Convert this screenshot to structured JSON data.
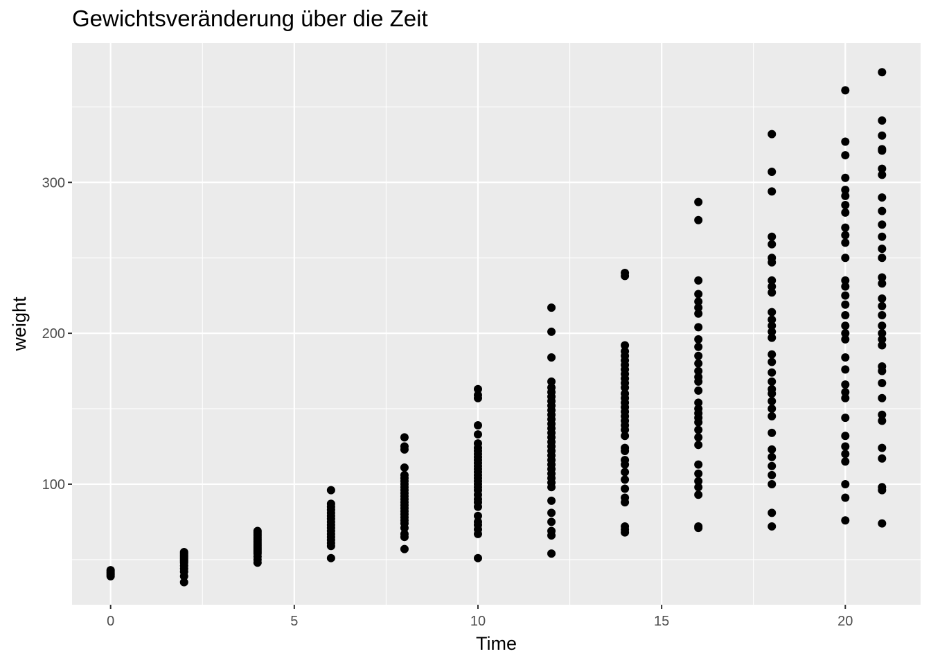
{
  "chart_data": {
    "type": "scatter",
    "title": "Gewichtsveränderung über die Zeit",
    "xlabel": "Time",
    "ylabel": "weight",
    "xlim": [
      -1.05,
      22.05
    ],
    "ylim": [
      20.1,
      392.4
    ],
    "x_ticks": [
      0,
      5,
      10,
      15,
      20
    ],
    "y_ticks": [
      100,
      200,
      300
    ],
    "grid": true,
    "panel_color": "#ebebeb",
    "grid_color": "#ffffff",
    "point_color": "#000000",
    "legend": "none",
    "series": [
      {
        "points": [
          [
            0,
            39
          ],
          [
            0,
            40
          ],
          [
            0,
            41
          ],
          [
            0,
            42
          ],
          [
            0,
            43
          ],
          [
            2,
            35
          ],
          [
            2,
            39
          ],
          [
            2,
            42
          ],
          [
            2,
            44
          ],
          [
            2,
            46
          ],
          [
            2,
            48
          ],
          [
            2,
            49
          ],
          [
            2,
            50
          ],
          [
            2,
            51
          ],
          [
            2,
            52
          ],
          [
            2,
            53
          ],
          [
            2,
            54
          ],
          [
            2,
            55
          ],
          [
            4,
            48
          ],
          [
            4,
            50
          ],
          [
            4,
            52
          ],
          [
            4,
            54
          ],
          [
            4,
            55
          ],
          [
            4,
            56
          ],
          [
            4,
            57
          ],
          [
            4,
            58
          ],
          [
            4,
            59
          ],
          [
            4,
            60
          ],
          [
            4,
            61
          ],
          [
            4,
            62
          ],
          [
            4,
            63
          ],
          [
            4,
            64
          ],
          [
            4,
            65
          ],
          [
            4,
            66
          ],
          [
            4,
            67
          ],
          [
            4,
            68
          ],
          [
            4,
            69
          ],
          [
            6,
            51
          ],
          [
            6,
            59
          ],
          [
            6,
            61
          ],
          [
            6,
            63
          ],
          [
            6,
            65
          ],
          [
            6,
            67
          ],
          [
            6,
            69
          ],
          [
            6,
            71
          ],
          [
            6,
            73
          ],
          [
            6,
            75
          ],
          [
            6,
            77
          ],
          [
            6,
            79
          ],
          [
            6,
            81
          ],
          [
            6,
            83
          ],
          [
            6,
            85
          ],
          [
            6,
            87
          ],
          [
            6,
            96
          ],
          [
            8,
            57
          ],
          [
            8,
            65
          ],
          [
            8,
            67
          ],
          [
            8,
            71
          ],
          [
            8,
            74
          ],
          [
            8,
            76
          ],
          [
            8,
            78
          ],
          [
            8,
            80
          ],
          [
            8,
            82
          ],
          [
            8,
            84
          ],
          [
            8,
            86
          ],
          [
            8,
            88
          ],
          [
            8,
            90
          ],
          [
            8,
            92
          ],
          [
            8,
            94
          ],
          [
            8,
            96
          ],
          [
            8,
            98
          ],
          [
            8,
            100
          ],
          [
            8,
            102
          ],
          [
            8,
            104
          ],
          [
            8,
            106
          ],
          [
            8,
            111
          ],
          [
            8,
            123
          ],
          [
            8,
            125
          ],
          [
            8,
            131
          ],
          [
            10,
            51
          ],
          [
            10,
            67
          ],
          [
            10,
            70
          ],
          [
            10,
            73
          ],
          [
            10,
            75
          ],
          [
            10,
            79
          ],
          [
            10,
            85
          ],
          [
            10,
            88
          ],
          [
            10,
            90
          ],
          [
            10,
            93
          ],
          [
            10,
            96
          ],
          [
            10,
            98
          ],
          [
            10,
            100
          ],
          [
            10,
            102
          ],
          [
            10,
            104
          ],
          [
            10,
            106
          ],
          [
            10,
            108
          ],
          [
            10,
            110
          ],
          [
            10,
            112
          ],
          [
            10,
            114
          ],
          [
            10,
            116
          ],
          [
            10,
            118
          ],
          [
            10,
            120
          ],
          [
            10,
            122
          ],
          [
            10,
            124
          ],
          [
            10,
            127
          ],
          [
            10,
            133
          ],
          [
            10,
            139
          ],
          [
            10,
            157
          ],
          [
            10,
            159
          ],
          [
            10,
            163
          ],
          [
            12,
            54
          ],
          [
            12,
            66
          ],
          [
            12,
            69
          ],
          [
            12,
            75
          ],
          [
            12,
            81
          ],
          [
            12,
            89
          ],
          [
            12,
            98
          ],
          [
            12,
            101
          ],
          [
            12,
            104
          ],
          [
            12,
            107
          ],
          [
            12,
            110
          ],
          [
            12,
            113
          ],
          [
            12,
            116
          ],
          [
            12,
            119
          ],
          [
            12,
            122
          ],
          [
            12,
            125
          ],
          [
            12,
            128
          ],
          [
            12,
            131
          ],
          [
            12,
            134
          ],
          [
            12,
            137
          ],
          [
            12,
            140
          ],
          [
            12,
            143
          ],
          [
            12,
            146
          ],
          [
            12,
            149
          ],
          [
            12,
            152
          ],
          [
            12,
            155
          ],
          [
            12,
            158
          ],
          [
            12,
            161
          ],
          [
            12,
            164
          ],
          [
            12,
            168
          ],
          [
            12,
            184
          ],
          [
            12,
            201
          ],
          [
            12,
            217
          ],
          [
            14,
            68
          ],
          [
            14,
            70
          ],
          [
            14,
            72
          ],
          [
            14,
            88
          ],
          [
            14,
            91
          ],
          [
            14,
            97
          ],
          [
            14,
            103
          ],
          [
            14,
            108
          ],
          [
            14,
            113
          ],
          [
            14,
            116
          ],
          [
            14,
            122
          ],
          [
            14,
            124
          ],
          [
            14,
            132
          ],
          [
            14,
            136
          ],
          [
            14,
            139
          ],
          [
            14,
            142
          ],
          [
            14,
            145
          ],
          [
            14,
            148
          ],
          [
            14,
            151
          ],
          [
            14,
            154
          ],
          [
            14,
            157
          ],
          [
            14,
            160
          ],
          [
            14,
            164
          ],
          [
            14,
            167
          ],
          [
            14,
            170
          ],
          [
            14,
            173
          ],
          [
            14,
            176
          ],
          [
            14,
            179
          ],
          [
            14,
            182
          ],
          [
            14,
            185
          ],
          [
            14,
            188
          ],
          [
            14,
            192
          ],
          [
            14,
            238
          ],
          [
            14,
            240
          ],
          [
            16,
            71
          ],
          [
            16,
            72
          ],
          [
            16,
            93
          ],
          [
            16,
            98
          ],
          [
            16,
            102
          ],
          [
            16,
            107
          ],
          [
            16,
            113
          ],
          [
            16,
            126
          ],
          [
            16,
            131
          ],
          [
            16,
            136
          ],
          [
            16,
            141
          ],
          [
            16,
            144
          ],
          [
            16,
            147
          ],
          [
            16,
            150
          ],
          [
            16,
            154
          ],
          [
            16,
            162
          ],
          [
            16,
            168
          ],
          [
            16,
            171
          ],
          [
            16,
            175
          ],
          [
            16,
            180
          ],
          [
            16,
            185
          ],
          [
            16,
            191
          ],
          [
            16,
            196
          ],
          [
            16,
            204
          ],
          [
            16,
            213
          ],
          [
            16,
            217
          ],
          [
            16,
            221
          ],
          [
            16,
            226
          ],
          [
            16,
            235
          ],
          [
            16,
            275
          ],
          [
            16,
            287
          ],
          [
            18,
            72
          ],
          [
            18,
            81
          ],
          [
            18,
            100
          ],
          [
            18,
            106
          ],
          [
            18,
            112
          ],
          [
            18,
            118
          ],
          [
            18,
            123
          ],
          [
            18,
            134
          ],
          [
            18,
            145
          ],
          [
            18,
            150
          ],
          [
            18,
            155
          ],
          [
            18,
            160
          ],
          [
            18,
            163
          ],
          [
            18,
            168
          ],
          [
            18,
            174
          ],
          [
            18,
            181
          ],
          [
            18,
            186
          ],
          [
            18,
            197
          ],
          [
            18,
            201
          ],
          [
            18,
            205
          ],
          [
            18,
            209
          ],
          [
            18,
            214
          ],
          [
            18,
            227
          ],
          [
            18,
            231
          ],
          [
            18,
            235
          ],
          [
            18,
            247
          ],
          [
            18,
            250
          ],
          [
            18,
            259
          ],
          [
            18,
            264
          ],
          [
            18,
            294
          ],
          [
            18,
            307
          ],
          [
            18,
            332
          ],
          [
            20,
            76
          ],
          [
            20,
            91
          ],
          [
            20,
            100
          ],
          [
            20,
            115
          ],
          [
            20,
            120
          ],
          [
            20,
            125
          ],
          [
            20,
            132
          ],
          [
            20,
            144
          ],
          [
            20,
            157
          ],
          [
            20,
            161
          ],
          [
            20,
            166
          ],
          [
            20,
            176
          ],
          [
            20,
            184
          ],
          [
            20,
            196
          ],
          [
            20,
            200
          ],
          [
            20,
            205
          ],
          [
            20,
            212
          ],
          [
            20,
            219
          ],
          [
            20,
            225
          ],
          [
            20,
            231
          ],
          [
            20,
            235
          ],
          [
            20,
            250
          ],
          [
            20,
            260
          ],
          [
            20,
            265
          ],
          [
            20,
            270
          ],
          [
            20,
            280
          ],
          [
            20,
            285
          ],
          [
            20,
            291
          ],
          [
            20,
            295
          ],
          [
            20,
            303
          ],
          [
            20,
            318
          ],
          [
            20,
            327
          ],
          [
            20,
            361
          ],
          [
            21,
            74
          ],
          [
            21,
            96
          ],
          [
            21,
            98
          ],
          [
            21,
            117
          ],
          [
            21,
            124
          ],
          [
            21,
            142
          ],
          [
            21,
            146
          ],
          [
            21,
            157
          ],
          [
            21,
            167
          ],
          [
            21,
            175
          ],
          [
            21,
            178
          ],
          [
            21,
            192
          ],
          [
            21,
            196
          ],
          [
            21,
            200
          ],
          [
            21,
            205
          ],
          [
            21,
            212
          ],
          [
            21,
            218
          ],
          [
            21,
            223
          ],
          [
            21,
            233
          ],
          [
            21,
            237
          ],
          [
            21,
            250
          ],
          [
            21,
            256
          ],
          [
            21,
            264
          ],
          [
            21,
            272
          ],
          [
            21,
            281
          ],
          [
            21,
            290
          ],
          [
            21,
            305
          ],
          [
            21,
            309
          ],
          [
            21,
            321
          ],
          [
            21,
            322
          ],
          [
            21,
            331
          ],
          [
            21,
            341
          ],
          [
            21,
            373
          ]
        ]
      }
    ]
  }
}
